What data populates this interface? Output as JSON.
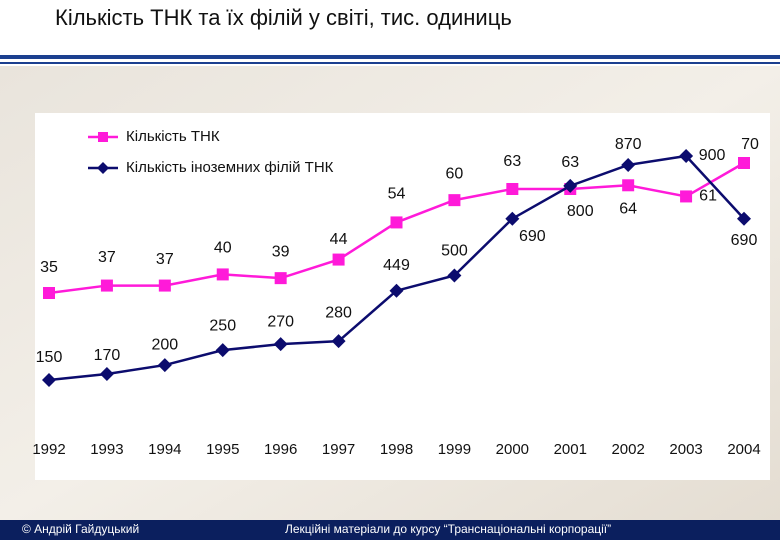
{
  "chart_data": {
    "type": "line",
    "title": "Кількість ТНК та їх філій у світі, тис. одиниць",
    "categories": [
      "1992",
      "1993",
      "1994",
      "1995",
      "1996",
      "1997",
      "1998",
      "1999",
      "2000",
      "2001",
      "2002",
      "2003",
      "2004"
    ],
    "series": [
      {
        "name": "Кількість ТНК",
        "color": "#ff1ad9",
        "marker": "square",
        "values": [
          35,
          37,
          37,
          40,
          39,
          44,
          54,
          60,
          63,
          63,
          64,
          61,
          70
        ]
      },
      {
        "name": "Кількість іноземних філій ТНК",
        "color": "#0c0c6e",
        "marker": "diamond",
        "values": [
          150,
          170,
          200,
          250,
          270,
          280,
          449,
          500,
          690,
          800,
          870,
          900,
          690
        ]
      }
    ]
  },
  "footer": {
    "author": "© Андрій Гайдуцький",
    "course": "Лекційні матеріали до курсу “Транснаціональні корпорації”"
  }
}
